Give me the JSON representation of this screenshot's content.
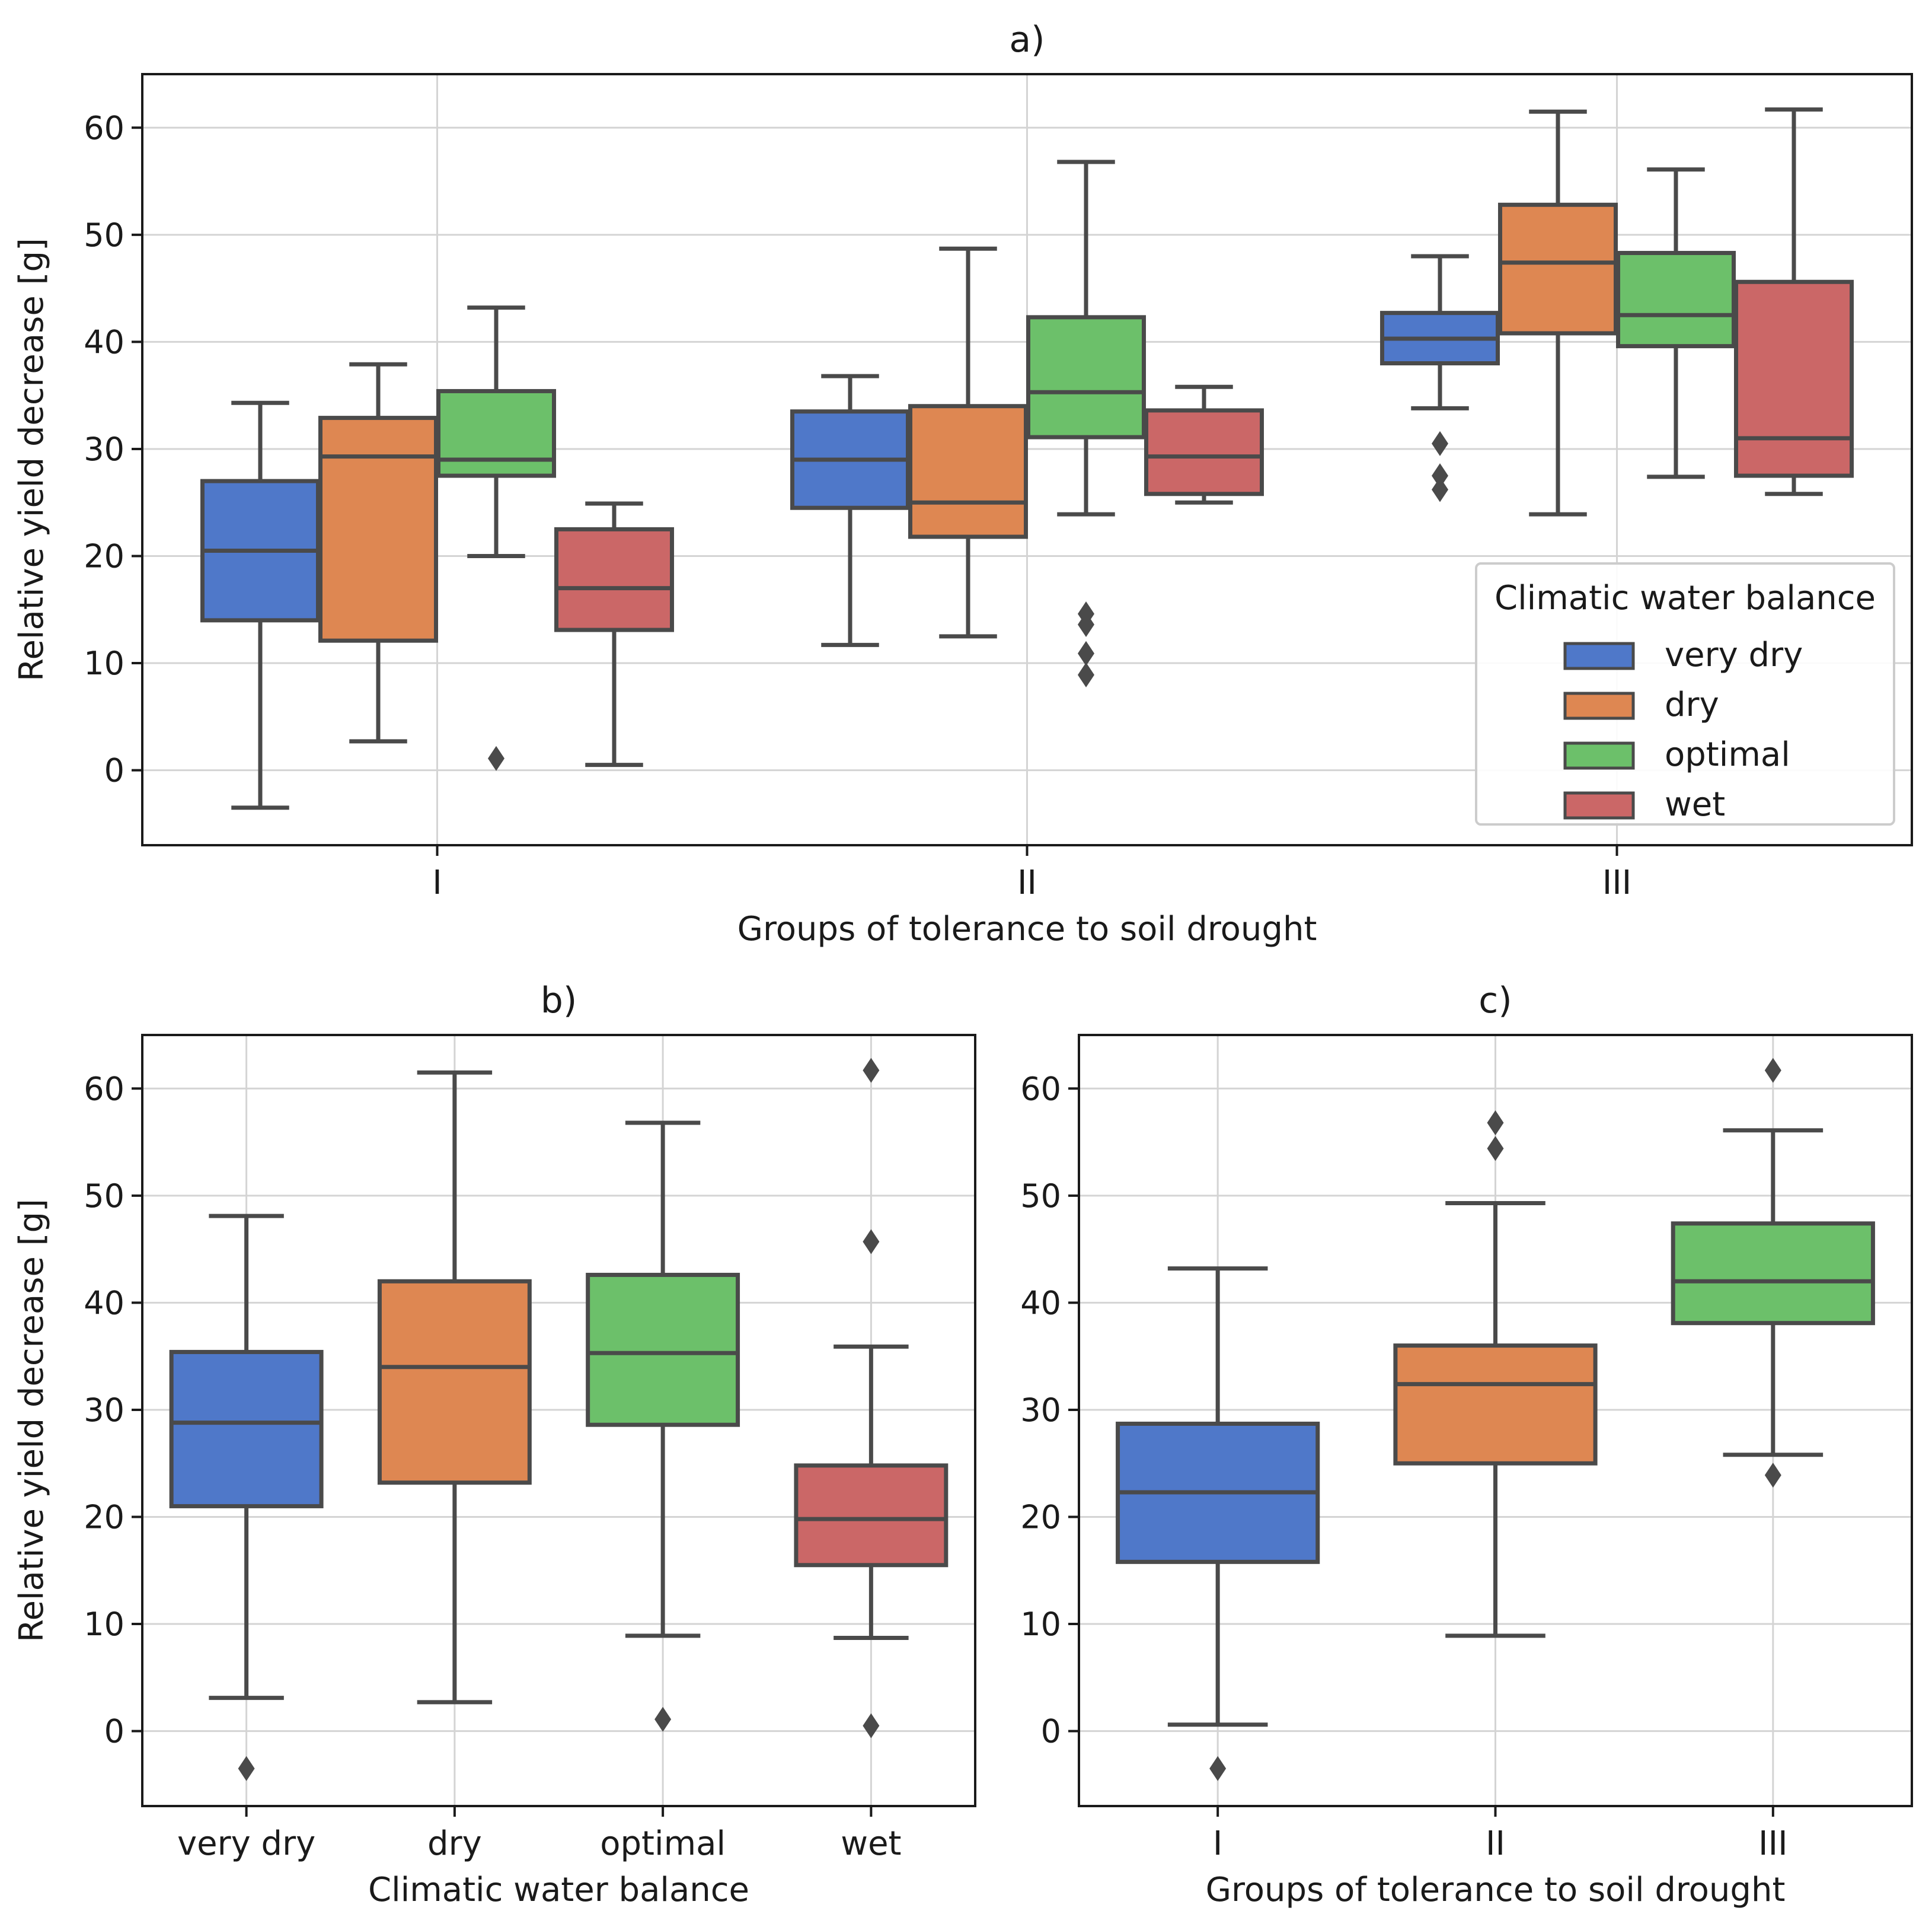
{
  "colors": {
    "very dry": "#4f78c9",
    "dry": "#de8752",
    "optimal": "#6cc06a",
    "wet": "#cb6767",
    "line": "#4a4a4a",
    "grid": "#d4d4d4"
  },
  "chart_data": [
    {
      "type": "box",
      "panel": "a",
      "title": "a)",
      "xlabel": "Groups of tolerance to soil drought",
      "ylabel": "Relative yield decrease [g]",
      "ylim": [
        -7,
        65
      ],
      "yticks": [
        0,
        10,
        20,
        30,
        40,
        50,
        60
      ],
      "grid": true,
      "categories": [
        "I",
        "II",
        "III"
      ],
      "legend": {
        "title": "Climatic water balance",
        "placement": "lower-right",
        "entries": [
          "very dry",
          "dry",
          "optimal",
          "wet"
        ]
      },
      "series": [
        {
          "name": "very dry",
          "boxes": [
            {
              "whislo": -3.5,
              "q1": 14,
              "med": 20.5,
              "q3": 27,
              "whishi": 34.3,
              "fliers": []
            },
            {
              "whislo": 11.7,
              "q1": 24.5,
              "med": 29,
              "q3": 33.5,
              "whishi": 36.8,
              "fliers": []
            },
            {
              "whislo": 33.8,
              "q1": 38,
              "med": 40.3,
              "q3": 42.7,
              "whishi": 48,
              "fliers": [
                30.5,
                27.5,
                26.2
              ]
            }
          ]
        },
        {
          "name": "dry",
          "boxes": [
            {
              "whislo": 2.7,
              "q1": 12.1,
              "med": 29.3,
              "q3": 32.9,
              "whishi": 37.9,
              "fliers": []
            },
            {
              "whislo": 12.5,
              "q1": 21.8,
              "med": 25,
              "q3": 34,
              "whishi": 48.7,
              "fliers": []
            },
            {
              "whislo": 23.9,
              "q1": 40.8,
              "med": 47.4,
              "q3": 52.8,
              "whishi": 61.5,
              "fliers": []
            }
          ]
        },
        {
          "name": "optimal",
          "boxes": [
            {
              "whislo": 20,
              "q1": 27.5,
              "med": 29,
              "q3": 35.4,
              "whishi": 43.2,
              "fliers": [
                1.1
              ]
            },
            {
              "whislo": 23.9,
              "q1": 31.1,
              "med": 35.3,
              "q3": 42.3,
              "whishi": 56.8,
              "fliers": [
                14.6,
                13.6,
                10.9,
                8.9
              ]
            },
            {
              "whislo": 27.4,
              "q1": 39.6,
              "med": 42.5,
              "q3": 48.3,
              "whishi": 56.1,
              "fliers": []
            }
          ]
        },
        {
          "name": "wet",
          "boxes": [
            {
              "whislo": 0.5,
              "q1": 13.1,
              "med": 17,
              "q3": 22.5,
              "whishi": 24.9,
              "fliers": []
            },
            {
              "whislo": 25,
              "q1": 25.8,
              "med": 29.3,
              "q3": 33.6,
              "whishi": 35.8,
              "fliers": []
            },
            {
              "whislo": 25.8,
              "q1": 27.5,
              "med": 31,
              "q3": 45.6,
              "whishi": 61.7,
              "fliers": []
            }
          ]
        }
      ]
    },
    {
      "type": "box",
      "panel": "b",
      "title": "b)",
      "xlabel": "Climatic water balance",
      "ylabel": "Relative yield decrease [g]",
      "ylim": [
        -7,
        65
      ],
      "yticks": [
        0,
        10,
        20,
        30,
        40,
        50,
        60
      ],
      "grid": true,
      "categories": [
        "very dry",
        "dry",
        "optimal",
        "wet"
      ],
      "boxes": [
        {
          "category": "very dry",
          "whislo": 3.1,
          "q1": 21,
          "med": 28.8,
          "q3": 35.4,
          "whishi": 48.1,
          "fliers": [
            -3.5
          ]
        },
        {
          "category": "dry",
          "whislo": 2.7,
          "q1": 23.2,
          "med": 34,
          "q3": 42,
          "whishi": 61.5,
          "fliers": []
        },
        {
          "category": "optimal",
          "whislo": 8.9,
          "q1": 28.6,
          "med": 35.3,
          "q3": 42.6,
          "whishi": 56.8,
          "fliers": [
            1.1
          ]
        },
        {
          "category": "wet",
          "whislo": 8.7,
          "q1": 15.5,
          "med": 19.8,
          "q3": 24.8,
          "whishi": 35.9,
          "fliers": [
            61.7,
            45.7,
            0.5
          ]
        }
      ]
    },
    {
      "type": "box",
      "panel": "c",
      "title": "c)",
      "xlabel": "Groups of tolerance to soil drought",
      "ylabel": "",
      "ylim": [
        -7,
        65
      ],
      "yticks": [
        0,
        10,
        20,
        30,
        40,
        50,
        60
      ],
      "grid": true,
      "categories": [
        "I",
        "II",
        "III"
      ],
      "boxes": [
        {
          "category": "I",
          "whislo": 0.6,
          "q1": 15.8,
          "med": 22.3,
          "q3": 28.7,
          "whishi": 43.2,
          "fliers": [
            -3.5
          ]
        },
        {
          "category": "II",
          "whislo": 8.9,
          "q1": 25,
          "med": 32.4,
          "q3": 36,
          "whishi": 49.3,
          "fliers": [
            56.8,
            54.4
          ]
        },
        {
          "category": "III",
          "whislo": 25.8,
          "q1": 38.1,
          "med": 42,
          "q3": 47.4,
          "whishi": 56.1,
          "fliers": [
            61.7,
            23.9
          ]
        }
      ]
    }
  ]
}
